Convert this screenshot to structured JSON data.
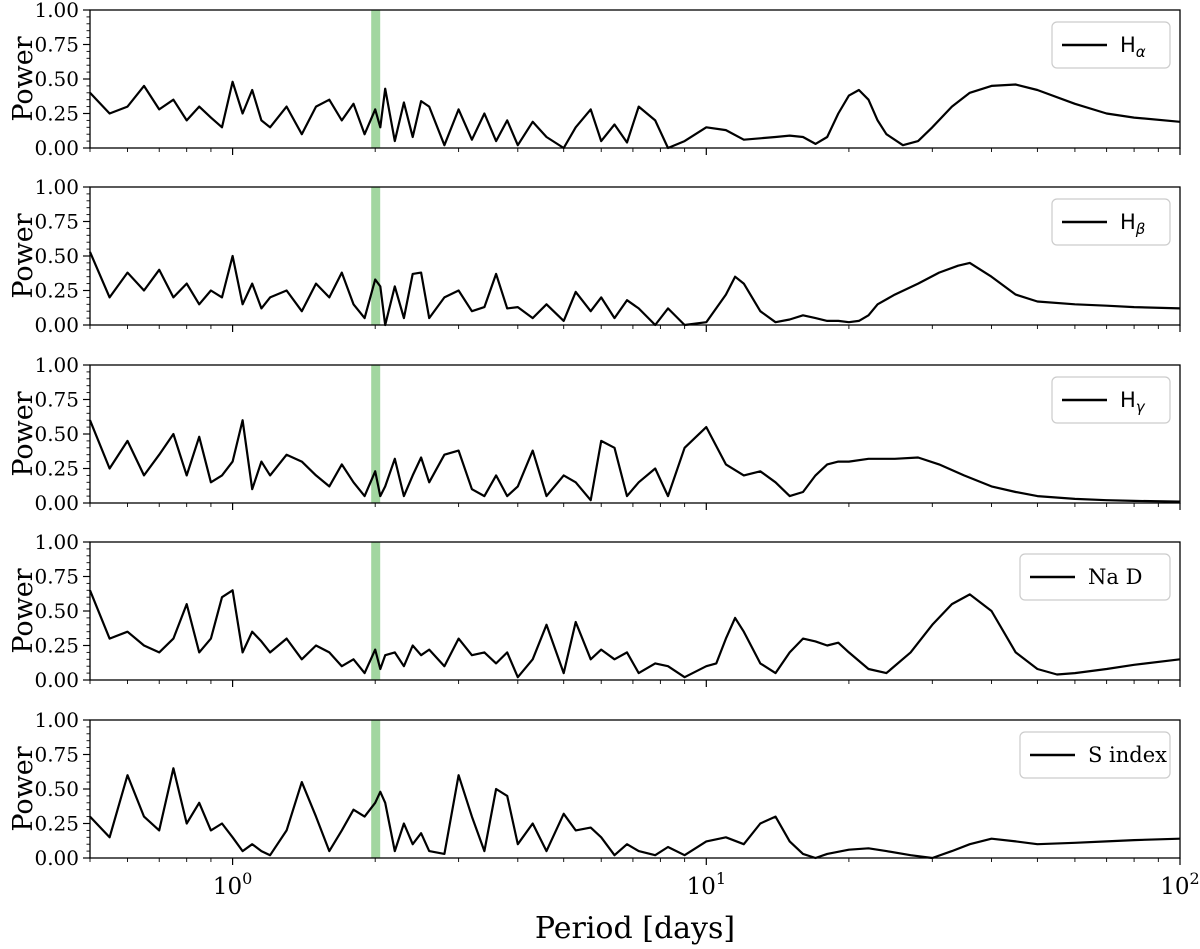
{
  "chart_data": {
    "type": "line",
    "xlabel": "Period [days]",
    "xscale": "log",
    "xlim": [
      0.5,
      100
    ],
    "x_ticks": [
      {
        "base": "10",
        "exp": "0",
        "value": 1
      },
      {
        "base": "10",
        "exp": "1",
        "value": 10
      },
      {
        "base": "10",
        "exp": "2",
        "value": 100
      }
    ],
    "ylim": [
      0,
      1
    ],
    "y_ticks": [
      "0.00",
      "0.25",
      "0.50",
      "0.75",
      "1.00"
    ],
    "highlight_band": {
      "x": 2.0,
      "color": "#92cf8f"
    },
    "line_color": "#000000",
    "panels": [
      {
        "ylabel": "Power",
        "legend": {
          "label": "H",
          "sub": "α",
          "style": "sans"
        },
        "x": [
          0.5,
          0.55,
          0.6,
          0.65,
          0.7,
          0.75,
          0.8,
          0.85,
          0.9,
          0.95,
          1.0,
          1.05,
          1.1,
          1.15,
          1.2,
          1.3,
          1.4,
          1.5,
          1.6,
          1.7,
          1.8,
          1.9,
          2.0,
          2.05,
          2.1,
          2.2,
          2.3,
          2.4,
          2.5,
          2.6,
          2.8,
          3.0,
          3.2,
          3.4,
          3.6,
          3.8,
          4.0,
          4.3,
          4.6,
          5.0,
          5.3,
          5.7,
          6.0,
          6.4,
          6.8,
          7.2,
          7.8,
          8.3,
          9.0,
          10.0,
          11.0,
          12.0,
          13.0,
          14.0,
          15.0,
          16.0,
          17.0,
          18.0,
          19.0,
          20.0,
          21.0,
          22.0,
          23.0,
          24.0,
          26.0,
          28.0,
          30.0,
          33.0,
          36.0,
          40.0,
          45.0,
          50.0,
          60.0,
          70.0,
          80.0,
          100.0
        ],
        "y": [
          0.4,
          0.25,
          0.3,
          0.45,
          0.28,
          0.35,
          0.2,
          0.3,
          0.22,
          0.15,
          0.48,
          0.25,
          0.42,
          0.2,
          0.15,
          0.3,
          0.1,
          0.3,
          0.35,
          0.2,
          0.32,
          0.1,
          0.28,
          0.15,
          0.43,
          0.05,
          0.33,
          0.08,
          0.34,
          0.3,
          0.02,
          0.28,
          0.06,
          0.25,
          0.05,
          0.2,
          0.02,
          0.19,
          0.08,
          0.0,
          0.15,
          0.28,
          0.05,
          0.17,
          0.04,
          0.3,
          0.2,
          0.0,
          0.05,
          0.15,
          0.13,
          0.06,
          0.07,
          0.08,
          0.09,
          0.08,
          0.03,
          0.08,
          0.25,
          0.38,
          0.42,
          0.35,
          0.2,
          0.1,
          0.02,
          0.05,
          0.15,
          0.3,
          0.4,
          0.45,
          0.46,
          0.42,
          0.32,
          0.25,
          0.22,
          0.19
        ]
      },
      {
        "ylabel": "Power",
        "legend": {
          "label": "H",
          "sub": "β",
          "style": "sans"
        },
        "x": [
          0.5,
          0.55,
          0.6,
          0.65,
          0.7,
          0.75,
          0.8,
          0.85,
          0.9,
          0.95,
          1.0,
          1.05,
          1.1,
          1.15,
          1.2,
          1.3,
          1.4,
          1.5,
          1.6,
          1.7,
          1.8,
          1.9,
          2.0,
          2.05,
          2.1,
          2.2,
          2.3,
          2.4,
          2.5,
          2.6,
          2.8,
          3.0,
          3.2,
          3.4,
          3.6,
          3.8,
          4.0,
          4.3,
          4.6,
          5.0,
          5.3,
          5.7,
          6.0,
          6.4,
          6.8,
          7.2,
          7.8,
          8.3,
          9.0,
          10.0,
          11.0,
          11.5,
          12.0,
          13.0,
          14.0,
          15.0,
          16.0,
          17.0,
          18.0,
          19.0,
          20.0,
          21.0,
          22.0,
          23.0,
          25.0,
          28.0,
          31.0,
          34.0,
          36.0,
          40.0,
          45.0,
          50.0,
          60.0,
          70.0,
          80.0,
          100.0
        ],
        "y": [
          0.53,
          0.2,
          0.38,
          0.25,
          0.4,
          0.2,
          0.3,
          0.15,
          0.25,
          0.2,
          0.5,
          0.15,
          0.3,
          0.12,
          0.2,
          0.25,
          0.1,
          0.3,
          0.2,
          0.38,
          0.15,
          0.05,
          0.33,
          0.28,
          0.0,
          0.28,
          0.05,
          0.37,
          0.38,
          0.05,
          0.2,
          0.25,
          0.1,
          0.13,
          0.37,
          0.12,
          0.13,
          0.05,
          0.15,
          0.03,
          0.24,
          0.1,
          0.2,
          0.05,
          0.18,
          0.12,
          0.0,
          0.12,
          0.0,
          0.02,
          0.22,
          0.35,
          0.3,
          0.1,
          0.02,
          0.04,
          0.07,
          0.05,
          0.03,
          0.03,
          0.02,
          0.03,
          0.07,
          0.15,
          0.22,
          0.3,
          0.38,
          0.43,
          0.45,
          0.35,
          0.22,
          0.17,
          0.15,
          0.14,
          0.13,
          0.12
        ]
      },
      {
        "ylabel": "Power",
        "legend": {
          "label": "H",
          "sub": "γ",
          "style": "sans"
        },
        "x": [
          0.5,
          0.55,
          0.6,
          0.65,
          0.7,
          0.75,
          0.8,
          0.85,
          0.9,
          0.95,
          1.0,
          1.05,
          1.1,
          1.15,
          1.2,
          1.3,
          1.4,
          1.5,
          1.6,
          1.7,
          1.8,
          1.9,
          2.0,
          2.05,
          2.1,
          2.2,
          2.3,
          2.4,
          2.5,
          2.6,
          2.8,
          3.0,
          3.2,
          3.4,
          3.6,
          3.8,
          4.0,
          4.3,
          4.6,
          5.0,
          5.3,
          5.7,
          6.0,
          6.4,
          6.8,
          7.2,
          7.8,
          8.3,
          9.0,
          10.0,
          11.0,
          12.0,
          13.0,
          14.0,
          15.0,
          16.0,
          17.0,
          18.0,
          19.0,
          20.0,
          22.0,
          25.0,
          28.0,
          31.0,
          35.0,
          40.0,
          45.0,
          50.0,
          60.0,
          70.0,
          80.0,
          100.0
        ],
        "y": [
          0.6,
          0.25,
          0.45,
          0.2,
          0.35,
          0.5,
          0.2,
          0.48,
          0.15,
          0.2,
          0.3,
          0.6,
          0.1,
          0.3,
          0.2,
          0.35,
          0.3,
          0.2,
          0.12,
          0.28,
          0.15,
          0.05,
          0.23,
          0.05,
          0.12,
          0.32,
          0.05,
          0.2,
          0.33,
          0.15,
          0.35,
          0.38,
          0.1,
          0.05,
          0.2,
          0.05,
          0.12,
          0.38,
          0.05,
          0.2,
          0.15,
          0.02,
          0.45,
          0.4,
          0.05,
          0.15,
          0.25,
          0.05,
          0.4,
          0.55,
          0.28,
          0.2,
          0.23,
          0.15,
          0.05,
          0.08,
          0.2,
          0.28,
          0.3,
          0.3,
          0.32,
          0.32,
          0.33,
          0.28,
          0.2,
          0.12,
          0.08,
          0.05,
          0.03,
          0.02,
          0.015,
          0.01
        ]
      },
      {
        "ylabel": "Power",
        "legend": {
          "label": "Na D",
          "sub": "",
          "style": "serif"
        },
        "x": [
          0.5,
          0.55,
          0.6,
          0.65,
          0.7,
          0.75,
          0.8,
          0.85,
          0.9,
          0.95,
          1.0,
          1.05,
          1.1,
          1.15,
          1.2,
          1.3,
          1.4,
          1.5,
          1.6,
          1.7,
          1.8,
          1.9,
          2.0,
          2.05,
          2.1,
          2.2,
          2.3,
          2.4,
          2.5,
          2.6,
          2.8,
          3.0,
          3.2,
          3.4,
          3.6,
          3.8,
          4.0,
          4.3,
          4.6,
          5.0,
          5.3,
          5.7,
          6.0,
          6.4,
          6.8,
          7.2,
          7.8,
          8.3,
          9.0,
          10.0,
          10.5,
          11.0,
          11.5,
          12.0,
          13.0,
          14.0,
          15.0,
          16.0,
          17.0,
          18.0,
          19.0,
          20.0,
          22.0,
          24.0,
          27.0,
          30.0,
          33.0,
          36.0,
          40.0,
          45.0,
          50.0,
          55.0,
          60.0,
          70.0,
          80.0,
          100.0
        ],
        "y": [
          0.65,
          0.3,
          0.35,
          0.25,
          0.2,
          0.3,
          0.55,
          0.2,
          0.3,
          0.6,
          0.65,
          0.2,
          0.35,
          0.28,
          0.2,
          0.3,
          0.15,
          0.25,
          0.2,
          0.1,
          0.15,
          0.05,
          0.22,
          0.08,
          0.18,
          0.2,
          0.1,
          0.25,
          0.18,
          0.22,
          0.1,
          0.3,
          0.18,
          0.2,
          0.12,
          0.2,
          0.02,
          0.15,
          0.4,
          0.05,
          0.42,
          0.15,
          0.22,
          0.15,
          0.2,
          0.05,
          0.12,
          0.1,
          0.02,
          0.1,
          0.12,
          0.3,
          0.45,
          0.35,
          0.12,
          0.05,
          0.2,
          0.3,
          0.28,
          0.25,
          0.27,
          0.2,
          0.08,
          0.05,
          0.2,
          0.4,
          0.55,
          0.62,
          0.5,
          0.2,
          0.08,
          0.04,
          0.05,
          0.08,
          0.11,
          0.15
        ]
      },
      {
        "ylabel": "Power",
        "legend": {
          "label": "S index",
          "sub": "",
          "style": "serif"
        },
        "x": [
          0.5,
          0.55,
          0.6,
          0.65,
          0.7,
          0.75,
          0.8,
          0.85,
          0.9,
          0.95,
          1.0,
          1.05,
          1.1,
          1.15,
          1.2,
          1.3,
          1.4,
          1.5,
          1.6,
          1.7,
          1.8,
          1.9,
          2.0,
          2.05,
          2.1,
          2.2,
          2.3,
          2.4,
          2.5,
          2.6,
          2.8,
          3.0,
          3.2,
          3.4,
          3.6,
          3.8,
          4.0,
          4.3,
          4.6,
          5.0,
          5.3,
          5.7,
          6.0,
          6.4,
          6.8,
          7.2,
          7.8,
          8.3,
          9.0,
          10.0,
          11.0,
          12.0,
          13.0,
          14.0,
          15.0,
          16.0,
          17.0,
          18.0,
          20.0,
          22.0,
          24.0,
          27.0,
          30.0,
          33.0,
          36.0,
          40.0,
          45.0,
          50.0,
          60.0,
          70.0,
          80.0,
          100.0
        ],
        "y": [
          0.3,
          0.15,
          0.6,
          0.3,
          0.2,
          0.65,
          0.25,
          0.4,
          0.2,
          0.25,
          0.15,
          0.05,
          0.1,
          0.05,
          0.02,
          0.2,
          0.55,
          0.3,
          0.05,
          0.2,
          0.35,
          0.3,
          0.4,
          0.48,
          0.4,
          0.05,
          0.25,
          0.1,
          0.18,
          0.05,
          0.03,
          0.6,
          0.3,
          0.05,
          0.5,
          0.45,
          0.1,
          0.25,
          0.05,
          0.32,
          0.2,
          0.22,
          0.15,
          0.02,
          0.1,
          0.05,
          0.02,
          0.08,
          0.02,
          0.12,
          0.15,
          0.1,
          0.25,
          0.3,
          0.12,
          0.03,
          0.0,
          0.03,
          0.06,
          0.07,
          0.05,
          0.02,
          0.0,
          0.05,
          0.1,
          0.14,
          0.12,
          0.1,
          0.11,
          0.12,
          0.13,
          0.14
        ]
      }
    ]
  }
}
